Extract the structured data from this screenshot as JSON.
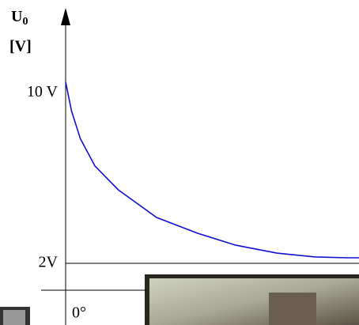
{
  "chart_data": {
    "type": "line",
    "y_label": "U",
    "y_label_sub": "0",
    "y_unit": "[V]",
    "x": [
      0,
      2,
      5,
      10,
      18,
      31,
      45,
      58,
      72,
      85,
      96,
      100
    ],
    "series": [
      {
        "color": "#1010d0",
        "values": [
          10.5,
          9.15,
          7.85,
          6.56,
          5.44,
          4.15,
          3.41,
          2.85,
          2.48,
          2.3,
          2.26,
          2.26
        ]
      }
    ],
    "xlim": [
      0,
      100
    ],
    "xticks": [
      {
        "value": 0,
        "label": "0°"
      }
    ],
    "ylim": [
      0.74,
      13.9
    ],
    "yticks": [
      {
        "value": 10,
        "label": "10 V"
      },
      {
        "value": 2,
        "label": "2V"
      }
    ],
    "reference_line": 2
  }
}
